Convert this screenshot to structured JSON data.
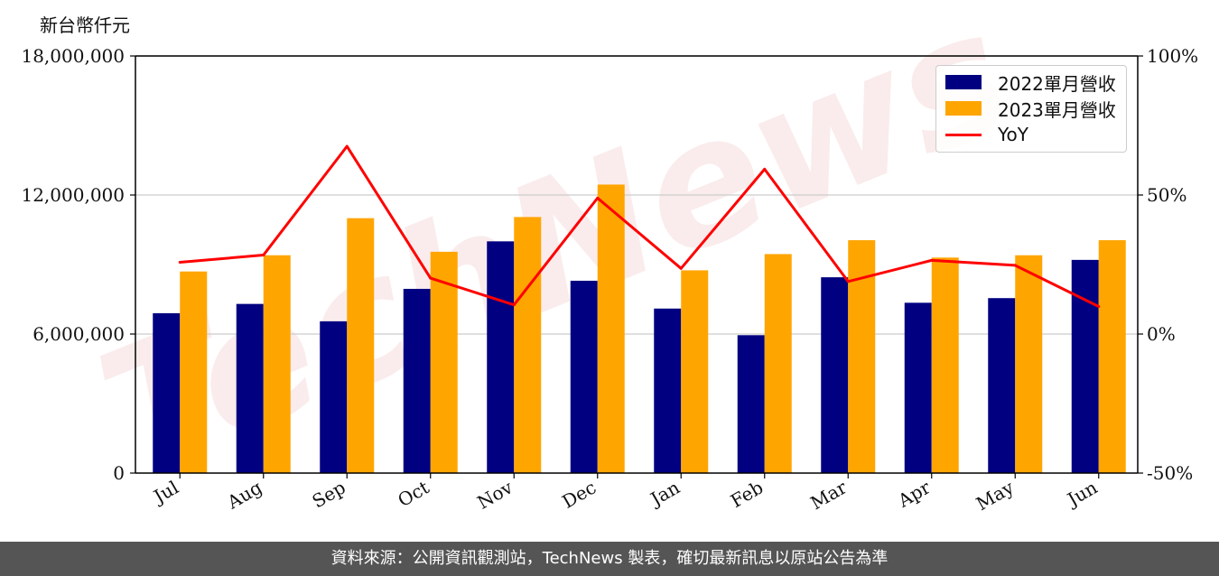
{
  "chart_data": {
    "type": "bar",
    "ylabel": "新台幣仟元",
    "categories": [
      "Jul",
      "Aug",
      "Sep",
      "Oct",
      "Nov",
      "Dec",
      "Jan",
      "Feb",
      "Mar",
      "Apr",
      "May",
      "Jun"
    ],
    "series": [
      {
        "name": "2022單月營收",
        "type": "bar",
        "color": "#000080",
        "values": [
          6900000,
          7300000,
          6550000,
          7950000,
          10000000,
          8300000,
          7100000,
          5950000,
          8450000,
          7350000,
          7550000,
          9200000
        ]
      },
      {
        "name": "2023單月營收",
        "type": "bar",
        "color": "#FFA500",
        "values": [
          8700000,
          9400000,
          11000000,
          9550000,
          11050000,
          12450000,
          8750000,
          9450000,
          10050000,
          9300000,
          9400000,
          10050000
        ]
      },
      {
        "name": "YoY",
        "type": "line",
        "color": "#FF0000",
        "axis": "right",
        "values": [
          25.8,
          28.4,
          67.5,
          20.1,
          10.5,
          48.9,
          23.6,
          59.3,
          18.9,
          26.5,
          24.7,
          9.9
        ]
      }
    ],
    "y_left": {
      "ticks": [
        "18,000,000",
        "12,000,000",
        "6,000,000",
        "0"
      ],
      "tick_values": [
        18000000,
        12000000,
        6000000,
        0
      ],
      "ylim": [
        0,
        18000000
      ]
    },
    "y_right": {
      "ticks": [
        "100%",
        "50%",
        "0%",
        "-50%"
      ],
      "tick_values": [
        100,
        50,
        0,
        -50
      ],
      "ylim": [
        -50,
        100
      ]
    },
    "grid": "horizontal",
    "legend": "top-right"
  },
  "watermark": "TechNews",
  "footer": "資料來源：公開資訊觀測站，TechNews 製表，確切最新訊息以原站公告為準",
  "colors": {
    "bar2022": "#000080",
    "bar2023": "#FFA500",
    "yoy": "#FF0000",
    "footer_bg": "#555555"
  }
}
